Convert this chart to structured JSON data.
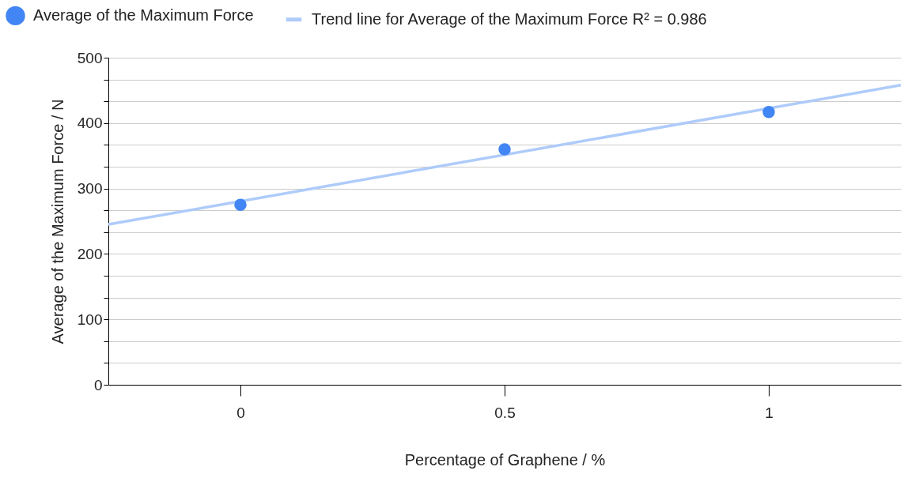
{
  "chart_data": {
    "type": "scatter",
    "xlabel": "Percentage of Graphene / %",
    "ylabel": "Average of the Maximum Force / N",
    "x": [
      0,
      0.5,
      1
    ],
    "series": [
      {
        "name": "Average of the Maximum Force",
        "color": "#4285f4",
        "marker": "circle",
        "values": [
          275,
          360,
          417
        ]
      },
      {
        "name": "Trend line for Average of the Maximum Force R² = 0.986",
        "type": "line",
        "color": "#aecbfa",
        "x": [
          -0.25,
          1.25
        ],
        "values": [
          245,
          458
        ]
      }
    ],
    "xlim": [
      -0.25,
      1.25
    ],
    "xticks": [
      0,
      0.5,
      1
    ],
    "ylim": [
      0,
      500
    ],
    "yticks": [
      0,
      {
        "value": 33.33,
        "label": null
      },
      {
        "value": 66.67,
        "label": null
      },
      100,
      {
        "value": 133.33,
        "label": null
      },
      {
        "value": 166.67,
        "label": null
      },
      200,
      {
        "value": 233.33,
        "label": null
      },
      {
        "value": 266.67,
        "label": null
      },
      300,
      {
        "value": 333.33,
        "label": null
      },
      {
        "value": 366.67,
        "label": null
      },
      400,
      {
        "value": 433.33,
        "label": null
      },
      {
        "value": 466.67,
        "label": null
      },
      500
    ],
    "grid": "y",
    "legend": "top left",
    "line_style": "solid"
  }
}
